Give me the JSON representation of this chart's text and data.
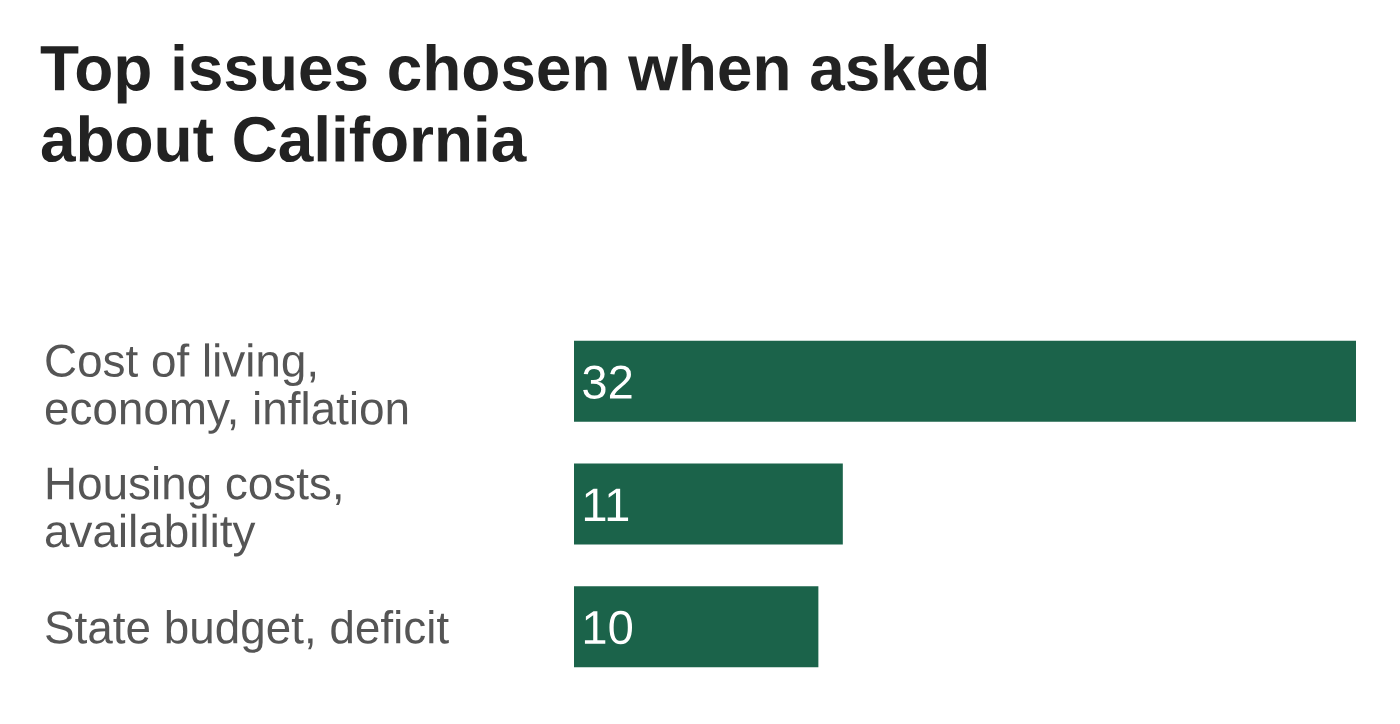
{
  "chart_data": {
    "type": "bar",
    "orientation": "horizontal",
    "title": "Top issues chosen when asked\nabout California",
    "categories": [
      "Cost of living,\neconomy, inflation",
      "Housing costs,\navailability",
      "State budget, deficit"
    ],
    "values": [
      32,
      11,
      10
    ],
    "color": "#1b634a",
    "data_labels": true,
    "grid": false,
    "legend": false
  }
}
